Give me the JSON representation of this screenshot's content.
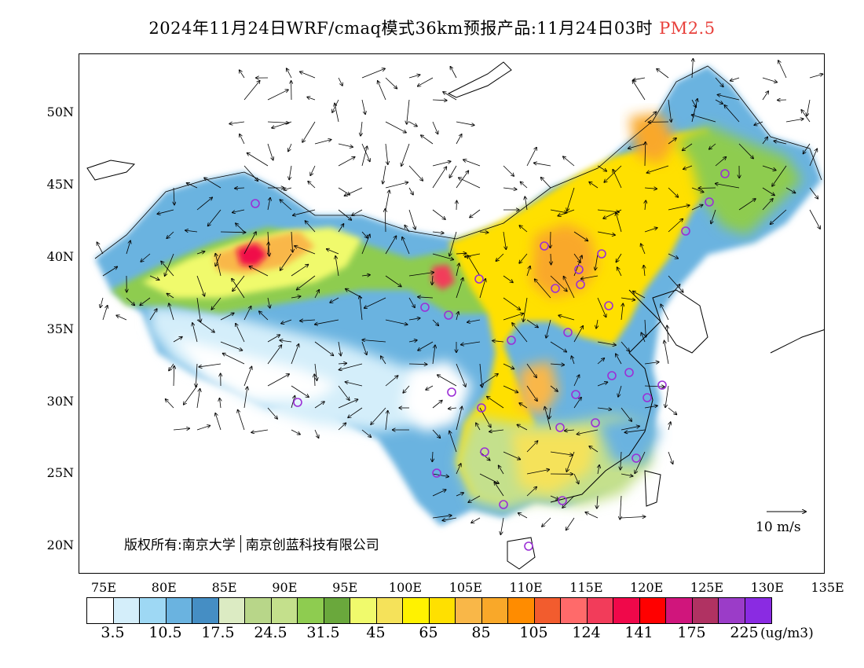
{
  "title": {
    "main": "2024年11月24日WRF/cmaq模式36km预报产品:11月24日03时",
    "variable": "PM2.5",
    "variable_color": "#e8413c"
  },
  "axes": {
    "y_labels": [
      "50N",
      "45N",
      "40N",
      "35N",
      "30N",
      "25N",
      "20N"
    ],
    "x_labels": [
      "75E",
      "80E",
      "85E",
      "90E",
      "95E",
      "100E",
      "105E",
      "110E",
      "115E",
      "120E",
      "125E",
      "130E",
      "135E"
    ]
  },
  "copyright": {
    "left": "版权所有:南京大学",
    "right": "南京创蓝科技有限公司"
  },
  "wind_reference": "10 m/s",
  "colorbar": {
    "colors": [
      "#ffffff",
      "#d4eefa",
      "#9ed8f4",
      "#6ab3e0",
      "#458ec4",
      "#dcebc3",
      "#b8d689",
      "#c4e08c",
      "#8ecc50",
      "#6aa83c",
      "#f0fa6c",
      "#f5e25a",
      "#fff200",
      "#ffe000",
      "#f9b748",
      "#f9a829",
      "#ff8c00",
      "#f25c2e",
      "#ff6a6a",
      "#f23c5a",
      "#f0084a",
      "#ff0000",
      "#d0157c",
      "#b03262",
      "#9b3cc8",
      "#8a2be2"
    ],
    "labels": [
      "3.5",
      "10.5",
      "17.5",
      "24.5",
      "31.5",
      "45",
      "65",
      "85",
      "105",
      "124",
      "141",
      "175",
      "225"
    ],
    "unit": "(ug/m3)"
  }
}
